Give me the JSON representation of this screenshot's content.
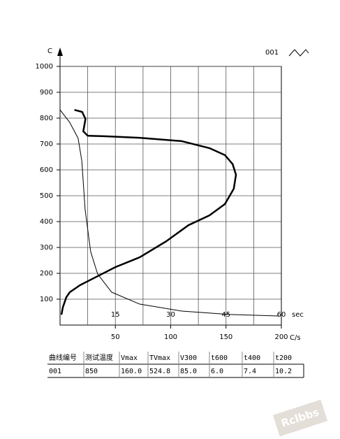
{
  "chart_data": {
    "type": "line",
    "y_label": "C",
    "x_label": "C/s",
    "x2_label": "sec",
    "legend": "001",
    "ylim": [
      0,
      1000
    ],
    "yticks": [
      100,
      200,
      300,
      400,
      500,
      600,
      700,
      800,
      900,
      1000
    ],
    "xlim": [
      0,
      200
    ],
    "xticks": [
      50,
      100,
      150,
      200
    ],
    "x_grid_step": 25,
    "x2lim": [
      0,
      60
    ],
    "x2ticks": [
      15,
      30,
      45,
      60
    ],
    "grid": true,
    "series": [
      {
        "color": "#000000",
        "x": [
          1.3,
          2.5,
          5.7,
          8.8,
          18,
          34,
          50,
          72,
          96,
          116,
          135,
          149,
          157,
          159,
          156,
          149,
          135,
          110,
          72,
          40,
          25,
          21,
          23,
          20,
          13
        ],
        "values": [
          40,
          68,
          108,
          127,
          154,
          189,
          224,
          262,
          324,
          386,
          424,
          468,
          527,
          581,
          622,
          657,
          684,
          711,
          724,
          730,
          732,
          749,
          797,
          824,
          832
        ]
      },
      {
        "color": "#000000",
        "axis": "x2",
        "x": [
          0,
          2.6,
          4.9,
          5.9,
          6.8,
          8.3,
          10.2,
          14,
          21.6,
          33,
          46,
          59.4
        ],
        "values": [
          832,
          784,
          722,
          635,
          446,
          284,
          197,
          127,
          81,
          54,
          41,
          35
        ]
      }
    ]
  },
  "table": {
    "header": [
      "曲线编号",
      "测试温度",
      "Vmax",
      "TVmax",
      "V300",
      "t600",
      "t400",
      "t200"
    ],
    "rows": [
      [
        "001",
        "850",
        "160.0",
        "524.8",
        "85.0",
        "6.0",
        "7.4",
        "10.2"
      ]
    ]
  },
  "watermark": "Rclbbs"
}
